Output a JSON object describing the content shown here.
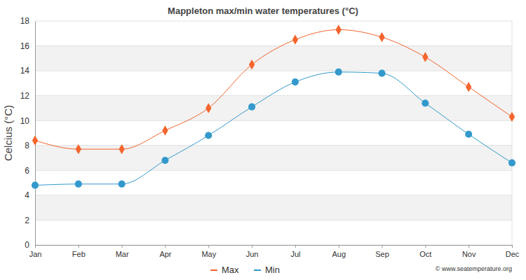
{
  "chart_data": {
    "type": "line",
    "title": "Mappleton max/min water temperatures (°C)",
    "y_label": "Celcius (°C)",
    "annotation": "© www.seatemperature.org",
    "categories": [
      "Jan",
      "Feb",
      "Mar",
      "Apr",
      "May",
      "Jun",
      "Jul",
      "Aug",
      "Sep",
      "Oct",
      "Nov",
      "Dec"
    ],
    "series": [
      {
        "name": "Max",
        "color": "#f4642c",
        "marker": "diamond",
        "line_style": "solid",
        "values": [
          8.4,
          7.7,
          7.7,
          9.2,
          11.0,
          14.5,
          16.5,
          17.3,
          16.7,
          15.1,
          12.7,
          10.3
        ]
      },
      {
        "name": "Min",
        "color": "#3399cc",
        "marker": "circle",
        "line_style": "solid",
        "values": [
          4.8,
          4.9,
          4.9,
          6.8,
          8.8,
          11.1,
          13.1,
          13.9,
          13.8,
          11.4,
          8.9,
          6.6
        ]
      }
    ],
    "ylim": [
      0,
      18
    ],
    "yticks": [
      0,
      2,
      4,
      6,
      8,
      10,
      12,
      14,
      16,
      18
    ],
    "grid": true,
    "legend": "bottom"
  }
}
